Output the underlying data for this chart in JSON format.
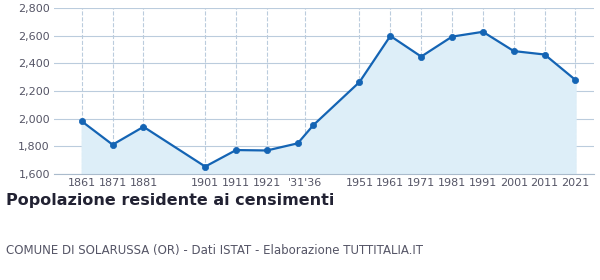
{
  "years": [
    1861,
    1871,
    1881,
    1901,
    1911,
    1921,
    1931,
    1936,
    1951,
    1961,
    1971,
    1981,
    1991,
    2001,
    2011,
    2021
  ],
  "population": [
    1980,
    1810,
    1940,
    1651,
    1771,
    1768,
    1820,
    1951,
    2265,
    2600,
    2450,
    2595,
    2630,
    2490,
    2465,
    2280
  ],
  "x_tick_positions": [
    1861,
    1871,
    1881,
    1901,
    1911,
    1921,
    1933.5,
    1951,
    1961,
    1971,
    1981,
    1991,
    2001,
    2011,
    2021
  ],
  "x_tick_labels": [
    "1861",
    "1871",
    "1881",
    "1901",
    "1911",
    "1921",
    "'31'36",
    "1951",
    "1961",
    "1971",
    "1981",
    "1991",
    "2001",
    "2011",
    "2021"
  ],
  "ylim": [
    1600,
    2800
  ],
  "yticks": [
    1600,
    1800,
    2000,
    2200,
    2400,
    2600,
    2800
  ],
  "ytick_labels": [
    "1,600",
    "1,800",
    "2,000",
    "2,200",
    "2,400",
    "2,600",
    "2,800"
  ],
  "line_color": "#1464b4",
  "fill_color": "#ddeef8",
  "marker_size": 4.5,
  "grid_color": "#bbccdd",
  "background_color": "#ffffff",
  "plot_bg_color": "#ffffff",
  "title": "Popolazione residente ai censimenti",
  "subtitle": "COMUNE DI SOLARUSSA (OR) - Dati ISTAT - Elaborazione TUTTITALIA.IT",
  "title_fontsize": 11.5,
  "subtitle_fontsize": 8.5,
  "xlim_left": 1852,
  "xlim_right": 2027
}
